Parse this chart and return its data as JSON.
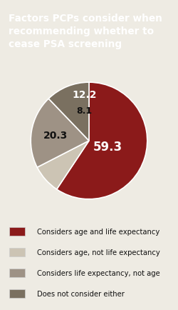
{
  "title": "Factors PCPs consider when\nrecommending whether to\ncease PSA screening",
  "title_bg_color": "#9e9488",
  "title_text_color": "#ffffff",
  "bg_color": "#eeebe3",
  "slices": [
    59.3,
    8.1,
    20.3,
    12.2
  ],
  "colors": [
    "#8b1a1a",
    "#ccc4b4",
    "#9e9285",
    "#7a7060"
  ],
  "labels": [
    "59.3",
    "8.1",
    "20.3",
    "12.2"
  ],
  "label_colors": [
    "#ffffff",
    "#000000",
    "#000000",
    "#ffffff"
  ],
  "legend_labels": [
    "Considers age and life expectancy",
    "Considers age, not life expectancy",
    "Considers life expectancy, not age",
    "Does not consider either"
  ],
  "legend_colors": [
    "#8b1a1a",
    "#ccc4b4",
    "#9e9285",
    "#7a7060"
  ],
  "startangle": 90,
  "figsize": [
    2.5,
    4.35
  ],
  "dpi": 100
}
